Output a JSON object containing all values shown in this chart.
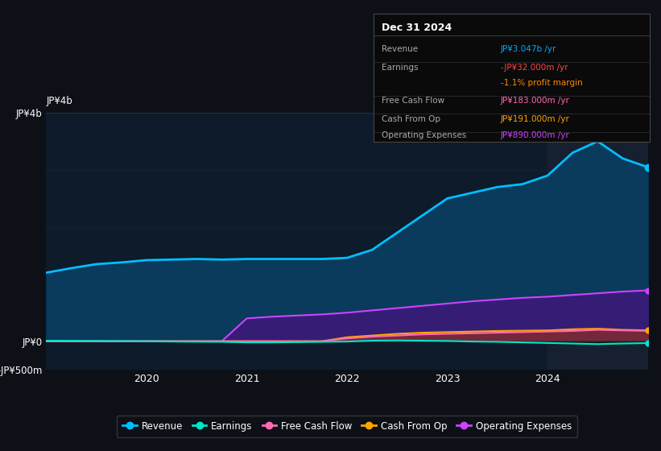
{
  "background_color": "#0d1117",
  "plot_bg_color": "#0d1b2a",
  "info_box": {
    "date": "Dec 31 2024",
    "rows": [
      {
        "label": "Revenue",
        "value": "JP¥3.047b /yr",
        "value_color": "#00aaff"
      },
      {
        "label": "Earnings",
        "value": "-JP¥32.000m /yr",
        "value_color": "#ff4444"
      },
      {
        "label": "",
        "value": "-1.1% profit margin",
        "value_color": "#ff8800"
      },
      {
        "label": "Free Cash Flow",
        "value": "JP¥183.000m /yr",
        "value_color": "#ff69b4"
      },
      {
        "label": "Cash From Op",
        "value": "JP¥191.000m /yr",
        "value_color": "#ffa500"
      },
      {
        "label": "Operating Expenses",
        "value": "JP¥890.000m /yr",
        "value_color": "#cc44ff"
      }
    ]
  },
  "x_dates": [
    2019.0,
    2019.25,
    2019.5,
    2019.75,
    2020.0,
    2020.25,
    2020.5,
    2020.75,
    2021.0,
    2021.25,
    2021.5,
    2021.75,
    2022.0,
    2022.25,
    2022.5,
    2022.75,
    2023.0,
    2023.25,
    2023.5,
    2023.75,
    2024.0,
    2024.25,
    2024.5,
    2024.75,
    2025.0
  ],
  "revenue": [
    1200,
    1280,
    1350,
    1380,
    1420,
    1430,
    1440,
    1430,
    1440,
    1440,
    1440,
    1440,
    1460,
    1600,
    1900,
    2200,
    2500,
    2600,
    2700,
    2750,
    2900,
    3300,
    3500,
    3200,
    3047
  ],
  "earnings": [
    10,
    8,
    5,
    2,
    0,
    -5,
    -8,
    -10,
    -20,
    -20,
    -15,
    -10,
    -5,
    10,
    15,
    10,
    5,
    -5,
    -10,
    -20,
    -30,
    -40,
    -50,
    -40,
    -32
  ],
  "free_cash_flow": [
    0,
    0,
    0,
    0,
    0,
    0,
    0,
    0,
    0,
    0,
    0,
    0,
    50,
    80,
    100,
    120,
    130,
    140,
    150,
    160,
    170,
    180,
    200,
    190,
    183
  ],
  "cash_from_op": [
    0,
    0,
    0,
    0,
    0,
    0,
    0,
    0,
    0,
    0,
    0,
    0,
    70,
    100,
    130,
    150,
    160,
    170,
    180,
    185,
    190,
    210,
    220,
    200,
    191
  ],
  "operating_expenses": [
    0,
    0,
    0,
    0,
    0,
    0,
    0,
    0,
    400,
    430,
    450,
    470,
    500,
    540,
    580,
    620,
    660,
    700,
    730,
    760,
    780,
    810,
    840,
    870,
    890
  ],
  "ylim": [
    -500,
    4000
  ],
  "ytick_values": [
    -500,
    0,
    4000
  ],
  "ytick_labels": [
    "-JP¥500m",
    "JP¥0",
    "JP¥4b"
  ],
  "xtick_positions": [
    2020,
    2021,
    2022,
    2023,
    2024
  ],
  "xtick_labels": [
    "2020",
    "2021",
    "2022",
    "2023",
    "2024"
  ],
  "highlight_x_start": 2024.0,
  "revenue_color": "#00bfff",
  "revenue_fill": "#0a3a5c",
  "earnings_color": "#00e5cc",
  "free_cash_flow_color": "#ff69b4",
  "cash_from_op_color": "#ffa500",
  "operating_expenses_color": "#cc44ff",
  "operating_expenses_fill": "#3a1a7a",
  "free_cash_flow_fill": "#7a2244",
  "cash_from_op_fill": "#7a4400",
  "earnings_fill": "#002a1a",
  "legend_items": [
    {
      "label": "Revenue",
      "color": "#00bfff"
    },
    {
      "label": "Earnings",
      "color": "#00e5cc"
    },
    {
      "label": "Free Cash Flow",
      "color": "#ff69b4"
    },
    {
      "label": "Cash From Op",
      "color": "#ffa500"
    },
    {
      "label": "Operating Expenses",
      "color": "#cc44ff"
    }
  ]
}
